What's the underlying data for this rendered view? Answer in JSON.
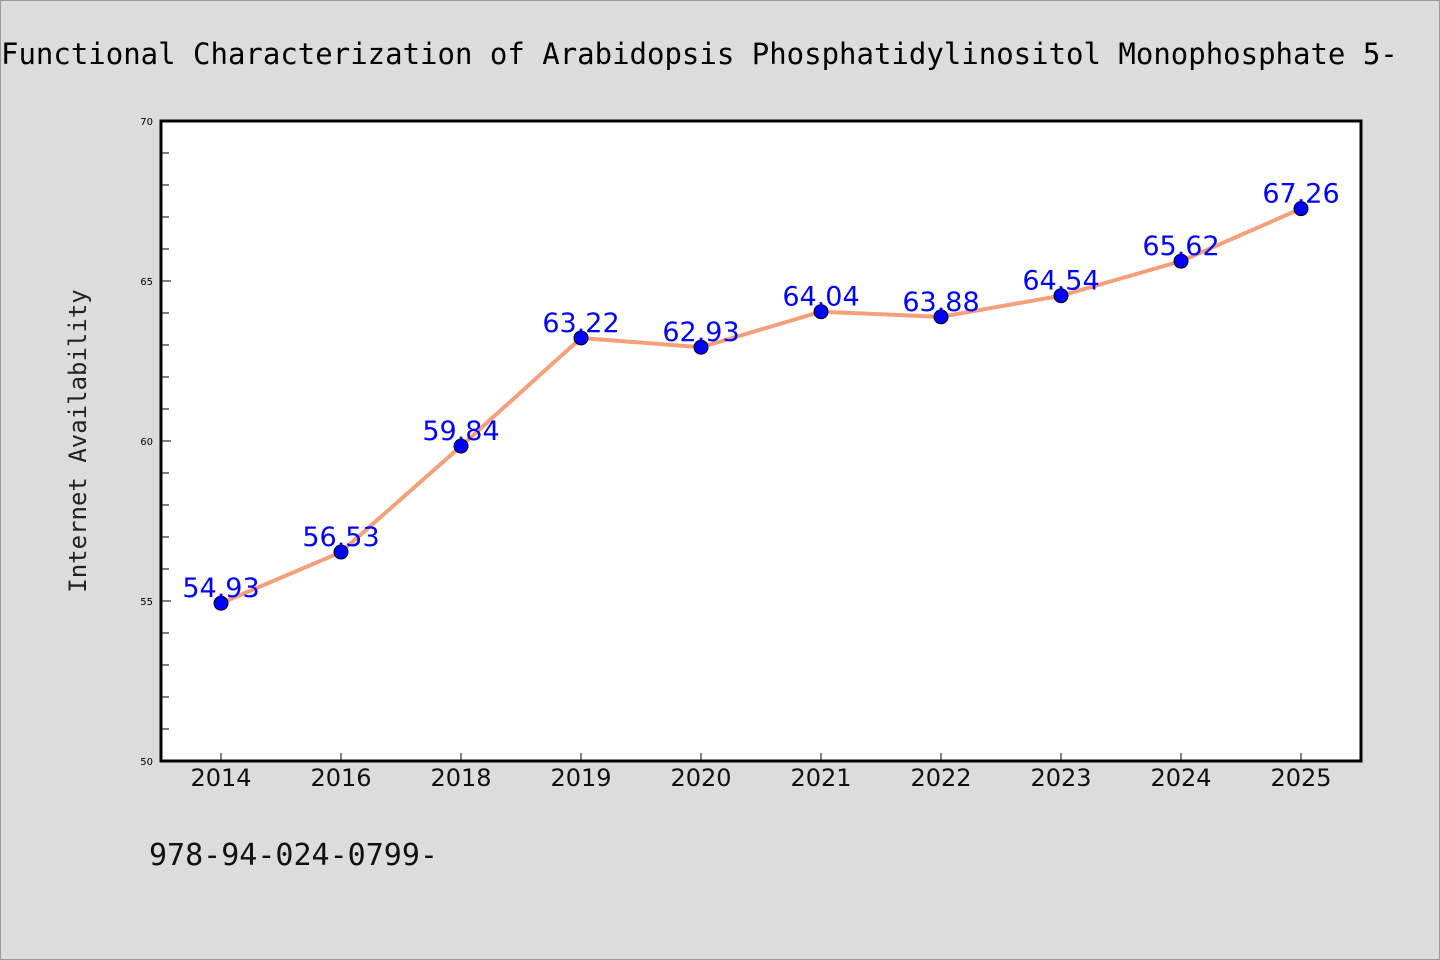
{
  "chart_data": {
    "type": "line",
    "title": "Functional Characterization of Arabidopsis Phosphatidylinositol Monophosphate 5-",
    "xlabel": "",
    "ylabel": "Internet Availability",
    "categories": [
      "2014",
      "2016",
      "2018",
      "2019",
      "2020",
      "2021",
      "2022",
      "2023",
      "2024",
      "2025"
    ],
    "series": [
      {
        "values": [
          54.93,
          56.53,
          59.84,
          63.22,
          62.93,
          64.04,
          63.88,
          64.54,
          65.62,
          67.26
        ]
      }
    ],
    "data_labels": [
      "54.93",
      "56.53",
      "59.84",
      "63.22",
      "62.93",
      "64.04",
      "63.88",
      "64.54",
      "65.62",
      "67.26"
    ],
    "ylim": [
      50,
      70
    ],
    "yticks": [
      "50",
      "55",
      "60",
      "65",
      "70"
    ],
    "grid": false,
    "legend": "none",
    "footer_text": "978-94-024-0799-",
    "colors": {
      "background": "#dcdcdc",
      "plot_background": "#ffffff",
      "line": "#f4a07a",
      "marker": "#0000ff",
      "data_label": "#0000ff",
      "axis": "#000000"
    }
  }
}
